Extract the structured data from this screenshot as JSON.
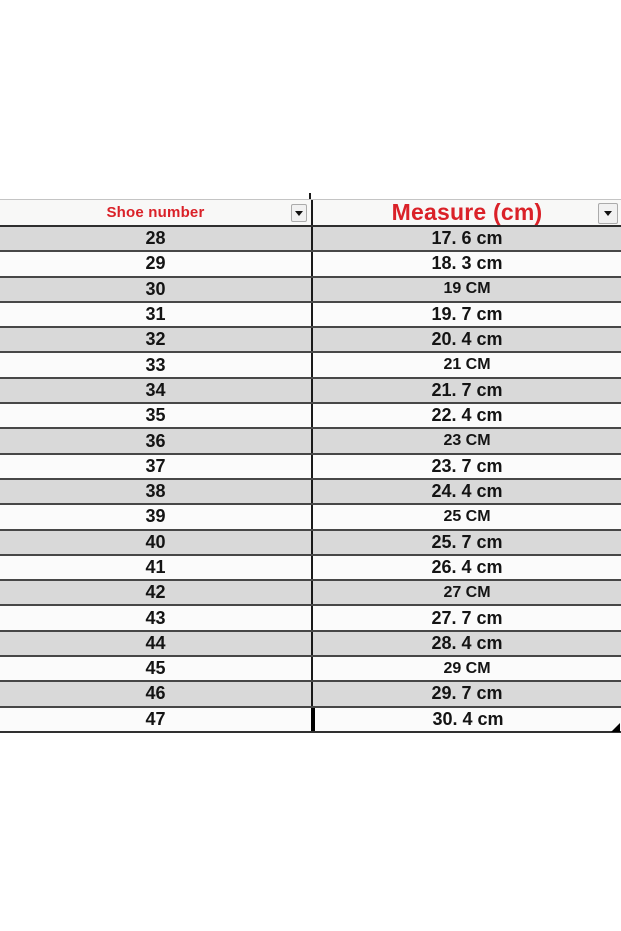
{
  "table": {
    "header": {
      "shoe_label": "Shoe number",
      "measure_label": "Measure (cm)"
    },
    "rows": [
      {
        "shoe": "28",
        "measure": "17. 6 cm"
      },
      {
        "shoe": "29",
        "measure": "18. 3 cm"
      },
      {
        "shoe": "30",
        "measure": "19 CM"
      },
      {
        "shoe": "31",
        "measure": "19. 7 cm"
      },
      {
        "shoe": "32",
        "measure": "20. 4 cm"
      },
      {
        "shoe": "33",
        "measure": "21 CM"
      },
      {
        "shoe": "34",
        "measure": "21. 7 cm"
      },
      {
        "shoe": "35",
        "measure": "22. 4 cm"
      },
      {
        "shoe": "36",
        "measure": "23 CM"
      },
      {
        "shoe": "37",
        "measure": "23. 7 cm"
      },
      {
        "shoe": "38",
        "measure": "24. 4 cm"
      },
      {
        "shoe": "39",
        "measure": "25 CM"
      },
      {
        "shoe": "40",
        "measure": "25. 7 cm"
      },
      {
        "shoe": "41",
        "measure": "26. 4 cm"
      },
      {
        "shoe": "42",
        "measure": "27 CM"
      },
      {
        "shoe": "43",
        "measure": "27. 7 cm"
      },
      {
        "shoe": "44",
        "measure": "28. 4 cm"
      },
      {
        "shoe": "45",
        "measure": "29 CM"
      },
      {
        "shoe": "46",
        "measure": "29. 7 cm"
      },
      {
        "shoe": "47",
        "measure": "30. 4 cm"
      }
    ],
    "colors": {
      "header_text": "#da2128",
      "row_gray": "#d9d9d9",
      "row_white": "#fbfbfb",
      "row_border": "#474747",
      "column_divider": "#1a1a1a",
      "selection_border": "#000000"
    },
    "icons": {
      "filter_dropdown": "chevron-down"
    }
  }
}
